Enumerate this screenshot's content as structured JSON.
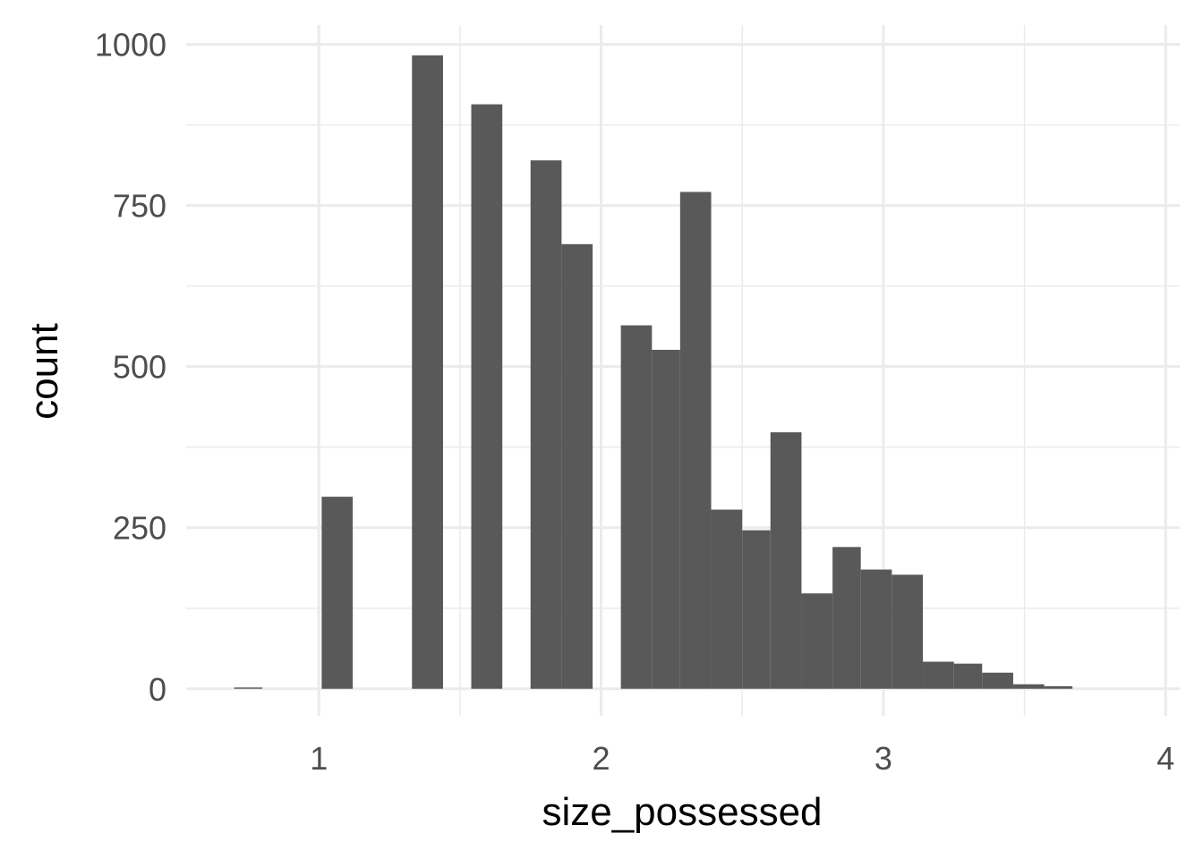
{
  "chart_data": {
    "type": "histogram",
    "title": "",
    "xlabel": "size_possessed",
    "ylabel": "count",
    "xlim": [
      0.53,
      4.05
    ],
    "ylim": [
      -42,
      1030
    ],
    "x_ticks": [
      1,
      2,
      3,
      4
    ],
    "y_ticks": [
      0,
      250,
      500,
      750,
      1000
    ],
    "x_minor_ticks": [
      1.5,
      2.5,
      3.5
    ],
    "y_minor_ticks": [
      125,
      375,
      625,
      875
    ],
    "grid": true,
    "legend": "none",
    "bar_color": "#595959",
    "bins": [
      {
        "x0": 0.7,
        "x1": 0.8,
        "count": 2
      },
      {
        "x0": 1.01,
        "x1": 1.12,
        "count": 298
      },
      {
        "x0": 1.33,
        "x1": 1.44,
        "count": 983
      },
      {
        "x0": 1.54,
        "x1": 1.65,
        "count": 907
      },
      {
        "x0": 1.75,
        "x1": 1.86,
        "count": 820
      },
      {
        "x0": 1.86,
        "x1": 1.97,
        "count": 690
      },
      {
        "x0": 2.07,
        "x1": 2.18,
        "count": 564
      },
      {
        "x0": 2.18,
        "x1": 2.28,
        "count": 526
      },
      {
        "x0": 2.28,
        "x1": 2.39,
        "count": 771
      },
      {
        "x0": 2.39,
        "x1": 2.5,
        "count": 278
      },
      {
        "x0": 2.5,
        "x1": 2.6,
        "count": 246
      },
      {
        "x0": 2.6,
        "x1": 2.71,
        "count": 398
      },
      {
        "x0": 2.71,
        "x1": 2.82,
        "count": 148
      },
      {
        "x0": 2.82,
        "x1": 2.92,
        "count": 220
      },
      {
        "x0": 2.92,
        "x1": 3.03,
        "count": 185
      },
      {
        "x0": 3.03,
        "x1": 3.14,
        "count": 177
      },
      {
        "x0": 3.14,
        "x1": 3.25,
        "count": 42
      },
      {
        "x0": 3.25,
        "x1": 3.35,
        "count": 39
      },
      {
        "x0": 3.35,
        "x1": 3.46,
        "count": 25
      },
      {
        "x0": 3.46,
        "x1": 3.57,
        "count": 7
      },
      {
        "x0": 3.57,
        "x1": 3.67,
        "count": 4
      }
    ]
  }
}
